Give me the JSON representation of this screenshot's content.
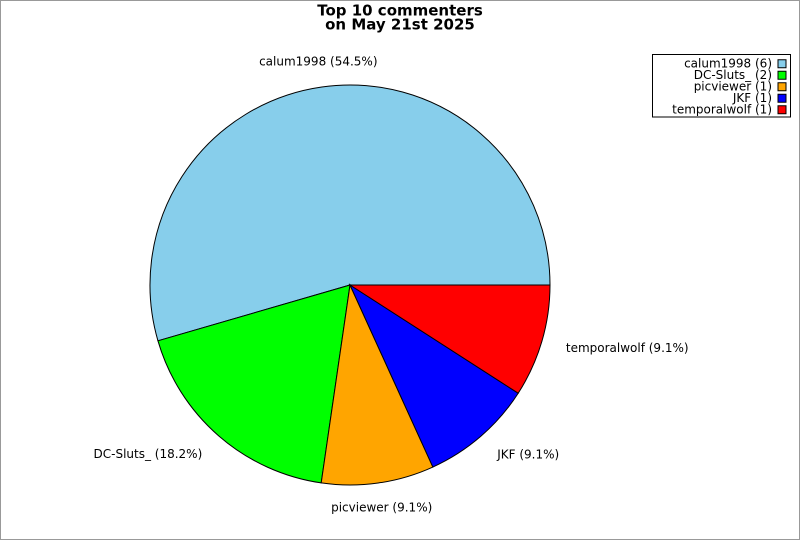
{
  "chart_data": {
    "type": "pie",
    "title": [
      "Top 10 commenters",
      "on May 21st 2025"
    ],
    "values": [
      54.5,
      18.2,
      9.1,
      9.1,
      9.1
    ],
    "value_labels": [
      "calum1998 (54.5%)",
      "DC-Sluts_ (18.2%)",
      "picviewer (9.1%)",
      "JKF (9.1%)",
      "temporalwolf (9.1%)"
    ],
    "legend_labels": [
      "calum1998 (6)",
      "DC-Sluts_ (2)",
      "picviewer (1)",
      "JKF (1)",
      "temporalwolf (1)"
    ],
    "colors": [
      "#87ceeb",
      "#00ff00",
      "#ffa500",
      "#0000ff",
      "#ff0000"
    ],
    "legend": "top-right"
  }
}
